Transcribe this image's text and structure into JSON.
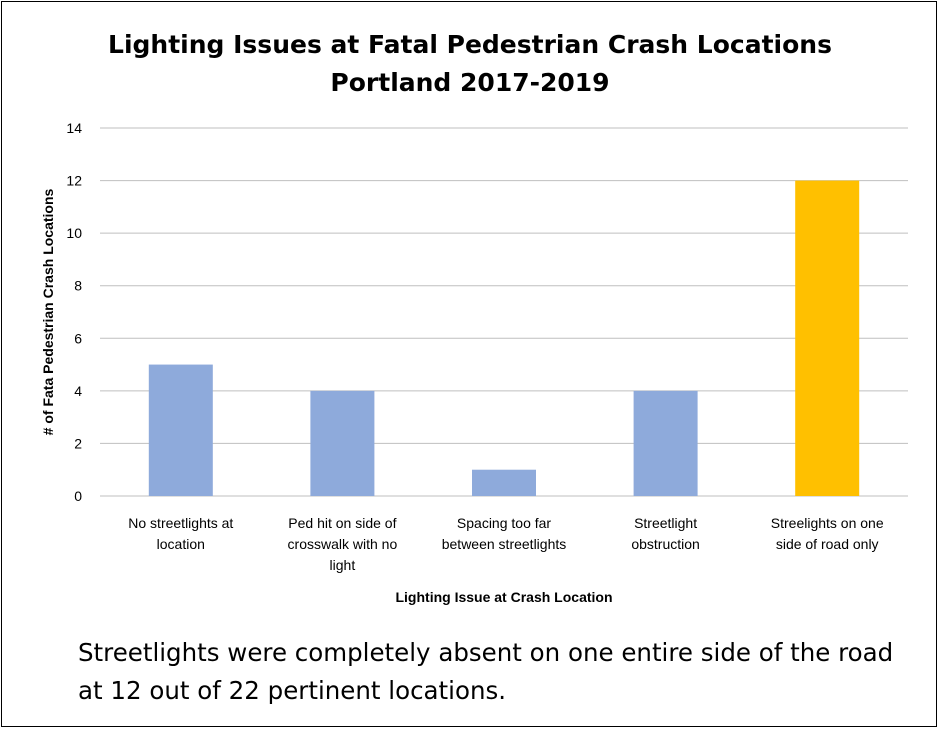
{
  "chart_data": {
    "type": "bar",
    "title": "Lighting Issues at Fatal Pedestrian Crash Locations",
    "subtitle": "Portland 2017-2019",
    "xlabel": "Lighting Issue at Crash Location",
    "ylabel": "# of Fata Pedestrian Crash Locations",
    "ylim": [
      0,
      14
    ],
    "yticks": [
      0,
      2,
      4,
      6,
      8,
      10,
      12,
      14
    ],
    "grid": true,
    "categories": [
      [
        "No streetlights at",
        "location"
      ],
      [
        "Ped hit on side of",
        "crosswalk with no",
        "light"
      ],
      [
        "Spacing too far",
        "between streetlights"
      ],
      [
        "Streetlight",
        "obstruction"
      ],
      [
        "Streelights on one",
        "side of road only"
      ]
    ],
    "values": [
      5,
      4,
      1,
      4,
      12
    ],
    "colors": [
      "#8eaadb",
      "#8eaadb",
      "#8eaadb",
      "#8eaadb",
      "#ffc000"
    ]
  },
  "caption": "Streetlights were completely absent on one entire side of the road at 12 out of 22 pertinent locations."
}
